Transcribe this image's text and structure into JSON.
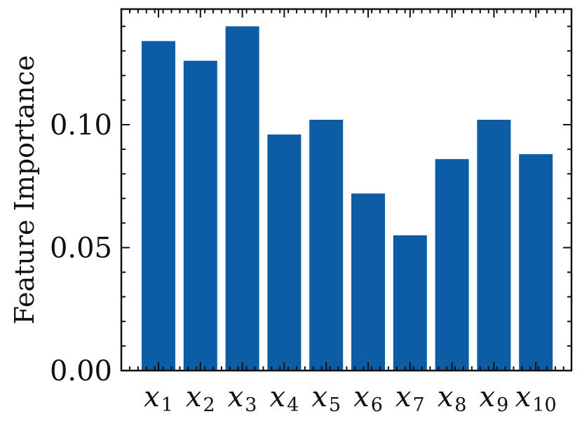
{
  "chart_data": {
    "type": "bar",
    "title": "",
    "xlabel": "",
    "ylabel": "Feature Importance",
    "categories": [
      {
        "base": "x",
        "sub": "1"
      },
      {
        "base": "x",
        "sub": "2"
      },
      {
        "base": "x",
        "sub": "3"
      },
      {
        "base": "x",
        "sub": "4"
      },
      {
        "base": "x",
        "sub": "5"
      },
      {
        "base": "x",
        "sub": "6"
      },
      {
        "base": "x",
        "sub": "7"
      },
      {
        "base": "x",
        "sub": "8"
      },
      {
        "base": "x",
        "sub": "9"
      },
      {
        "base": "x",
        "sub": "10"
      }
    ],
    "values": [
      0.134,
      0.126,
      0.14,
      0.096,
      0.102,
      0.072,
      0.055,
      0.086,
      0.102,
      0.088
    ],
    "ylim": [
      0.0,
      0.147
    ],
    "yticks": [
      0.0,
      0.05,
      0.1
    ],
    "ytick_labels": [
      "0.00",
      "0.05",
      "0.10"
    ],
    "bar_color": "#0c5da5",
    "grid": false,
    "legend": false
  }
}
